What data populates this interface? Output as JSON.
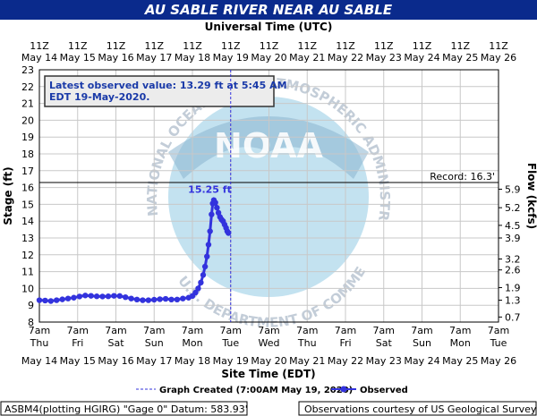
{
  "chart_data": {
    "type": "line",
    "title": "AU SABLE RIVER NEAR AU SABLE",
    "top_axis_title": "Universal Time (UTC)",
    "top_ticks": [
      {
        "hour": "11Z",
        "date": "May 14"
      },
      {
        "hour": "11Z",
        "date": "May 15"
      },
      {
        "hour": "11Z",
        "date": "May 16"
      },
      {
        "hour": "11Z",
        "date": "May 17"
      },
      {
        "hour": "11Z",
        "date": "May 18"
      },
      {
        "hour": "11Z",
        "date": "May 19"
      },
      {
        "hour": "11Z",
        "date": "May 20"
      },
      {
        "hour": "11Z",
        "date": "May 21"
      },
      {
        "hour": "11Z",
        "date": "May 22"
      },
      {
        "hour": "11Z",
        "date": "May 23"
      },
      {
        "hour": "11Z",
        "date": "May 24"
      },
      {
        "hour": "11Z",
        "date": "May 25"
      },
      {
        "hour": "11Z",
        "date": "May 26"
      }
    ],
    "xlabel": "Site Time (EDT)",
    "bottom_ticks": [
      {
        "time": "7am",
        "day": "Thu",
        "date": "May 14"
      },
      {
        "time": "7am",
        "day": "Fri",
        "date": "May 15"
      },
      {
        "time": "7am",
        "day": "Sat",
        "date": "May 16"
      },
      {
        "time": "7am",
        "day": "Sun",
        "date": "May 17"
      },
      {
        "time": "7am",
        "day": "Mon",
        "date": "May 18"
      },
      {
        "time": "7am",
        "day": "Tue",
        "date": "May 19"
      },
      {
        "time": "7am",
        "day": "Wed",
        "date": "May 20"
      },
      {
        "time": "7am",
        "day": "Thu",
        "date": "May 21"
      },
      {
        "time": "7am",
        "day": "Fri",
        "date": "May 22"
      },
      {
        "time": "7am",
        "day": "Sat",
        "date": "May 23"
      },
      {
        "time": "7am",
        "day": "Sun",
        "date": "May 24"
      },
      {
        "time": "7am",
        "day": "Mon",
        "date": "May 25"
      },
      {
        "time": "7am",
        "day": "Tue",
        "date": "May 26"
      }
    ],
    "ylabel": "Stage (ft)",
    "ylim": [
      8,
      23
    ],
    "yticks": [
      "8",
      "9",
      "10",
      "11",
      "12",
      "13",
      "14",
      "15",
      "16",
      "17",
      "18",
      "19",
      "20",
      "21",
      "22",
      "23"
    ],
    "y2label": "Flow (kcfs)",
    "y2_ticks": [
      {
        "stage": 8.3,
        "label": "0.7"
      },
      {
        "stage": 9.3,
        "label": "1.3"
      },
      {
        "stage": 10.05,
        "label": "1.9"
      },
      {
        "stage": 11.1,
        "label": "2.6"
      },
      {
        "stage": 11.75,
        "label": "3.2"
      },
      {
        "stage": 13.0,
        "label": "3.9"
      },
      {
        "stage": 13.75,
        "label": "4.5"
      },
      {
        "stage": 14.8,
        "label": "5.2"
      },
      {
        "stage": 15.9,
        "label": "5.9"
      }
    ],
    "grid": true,
    "record": {
      "stage": 16.3,
      "label": "Record: 16.3'"
    },
    "peak": {
      "day": 4.55,
      "stage": 15.25,
      "label": "15.25 ft"
    },
    "graph_created_day": 5.0,
    "info_box": {
      "line1": "Latest observed value: 13.29 ft at 5:45 AM",
      "line2": "EDT 19-May-2020."
    },
    "series": [
      {
        "name": "Observed",
        "color": "#3333dd",
        "points": [
          [
            0.0,
            9.3
          ],
          [
            0.15,
            9.28
          ],
          [
            0.3,
            9.25
          ],
          [
            0.45,
            9.3
          ],
          [
            0.6,
            9.35
          ],
          [
            0.75,
            9.4
          ],
          [
            0.9,
            9.45
          ],
          [
            1.05,
            9.52
          ],
          [
            1.2,
            9.58
          ],
          [
            1.35,
            9.56
          ],
          [
            1.5,
            9.53
          ],
          [
            1.65,
            9.52
          ],
          [
            1.8,
            9.53
          ],
          [
            1.95,
            9.56
          ],
          [
            2.1,
            9.55
          ],
          [
            2.25,
            9.48
          ],
          [
            2.4,
            9.4
          ],
          [
            2.55,
            9.34
          ],
          [
            2.7,
            9.3
          ],
          [
            2.85,
            9.3
          ],
          [
            3.0,
            9.33
          ],
          [
            3.15,
            9.36
          ],
          [
            3.3,
            9.38
          ],
          [
            3.45,
            9.34
          ],
          [
            3.6,
            9.34
          ],
          [
            3.75,
            9.4
          ],
          [
            3.9,
            9.45
          ],
          [
            4.0,
            9.55
          ],
          [
            4.08,
            9.75
          ],
          [
            4.15,
            10.0
          ],
          [
            4.22,
            10.35
          ],
          [
            4.28,
            10.8
          ],
          [
            4.33,
            11.3
          ],
          [
            4.38,
            11.9
          ],
          [
            4.42,
            12.6
          ],
          [
            4.46,
            13.4
          ],
          [
            4.5,
            14.4
          ],
          [
            4.53,
            15.05
          ],
          [
            4.56,
            15.25
          ],
          [
            4.6,
            15.1
          ],
          [
            4.64,
            14.8
          ],
          [
            4.68,
            14.5
          ],
          [
            4.72,
            14.25
          ],
          [
            4.76,
            14.1
          ],
          [
            4.8,
            14.0
          ],
          [
            4.84,
            13.8
          ],
          [
            4.88,
            13.6
          ],
          [
            4.91,
            13.4
          ],
          [
            4.94,
            13.29
          ]
        ]
      }
    ],
    "legend": {
      "created_label": "Graph Created (7:00AM May 19, 2020)",
      "observed_label": "Observed"
    },
    "colors": {
      "banner": "#0a2a8c",
      "series": "#3333dd",
      "created_line": "#3333dd",
      "watermark_fill": "#a9d6ea",
      "watermark_text": "#c3cdd8"
    }
  },
  "watermark": {
    "center_text": "NOAA",
    "ring_text": "NATIONAL OCEANIC AND ATMOSPHERIC ADMINISTRATION",
    "bottom_text": "U.S. DEPARTMENT OF COMMERCE"
  },
  "footer": {
    "left": "ASBM4(plotting HGIRG) \"Gage 0\" Datum:  583.93'",
    "right": "Observations courtesy of US Geological Survey"
  }
}
